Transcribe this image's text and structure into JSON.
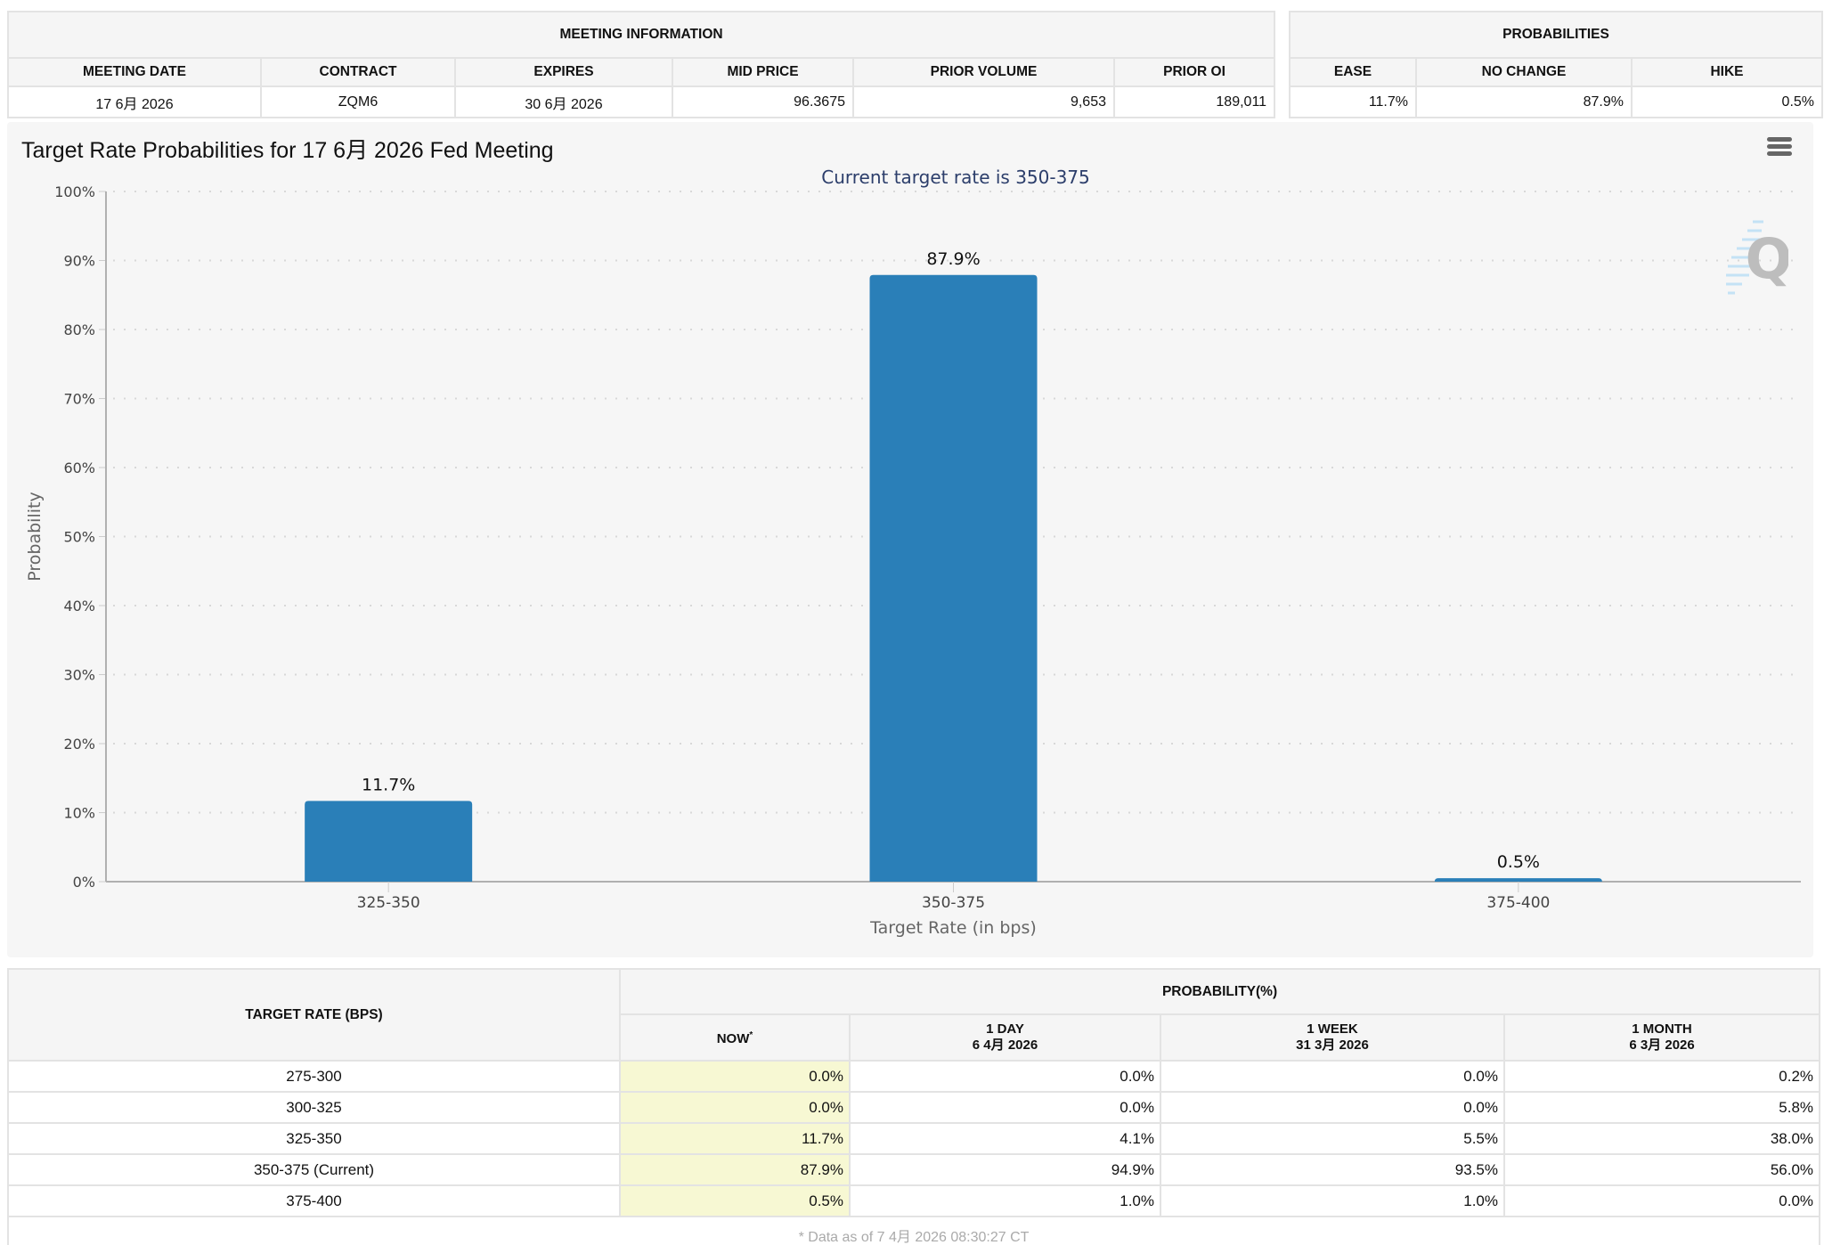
{
  "meeting_info": {
    "title": "MEETING INFORMATION",
    "columns": [
      "MEETING DATE",
      "CONTRACT",
      "EXPIRES",
      "MID PRICE",
      "PRIOR VOLUME",
      "PRIOR OI"
    ],
    "values": [
      "17 6月 2026",
      "ZQM6",
      "30 6月 2026",
      "96.3675",
      "9,653",
      "189,011"
    ]
  },
  "probabilities": {
    "title": "PROBABILITIES",
    "columns": [
      "EASE",
      "NO CHANGE",
      "HIKE"
    ],
    "values": [
      "11.7%",
      "87.9%",
      "0.5%"
    ]
  },
  "chart_panel": {
    "menu_icon": "hamburger-menu-icon",
    "watermark_icon": "quikstrike-q-logo-icon"
  },
  "chart_data": {
    "type": "bar",
    "title": "Target Rate Probabilities for 17 6月 2026 Fed Meeting",
    "subtitle": "Current target rate is 350-375",
    "categories": [
      "325-350",
      "350-375",
      "375-400"
    ],
    "values": [
      11.7,
      87.9,
      0.5
    ],
    "data_labels": [
      "11.7%",
      "87.9%",
      "0.5%"
    ],
    "xlabel": "Target Rate (in bps)",
    "ylabel": "Probability",
    "ylim": [
      0,
      100
    ],
    "yticks": [
      0,
      10,
      20,
      30,
      40,
      50,
      60,
      70,
      80,
      90,
      100
    ],
    "ytick_labels": [
      "0%",
      "10%",
      "20%",
      "30%",
      "40%",
      "50%",
      "60%",
      "70%",
      "80%",
      "90%",
      "100%"
    ],
    "grid": true,
    "bar_color": "#2a7fb8",
    "legend": "none"
  },
  "target_table": {
    "rate_header": "TARGET RATE (BPS)",
    "prob_header": "PROBABILITY(%)",
    "columns": [
      {
        "label": "NOW",
        "sup": "*",
        "date": ""
      },
      {
        "label": "1 DAY",
        "date": "6 4月 2026"
      },
      {
        "label": "1 WEEK",
        "date": "31 3月 2026"
      },
      {
        "label": "1 MONTH",
        "date": "6 3月 2026"
      }
    ],
    "rows": [
      {
        "rate": "275-300",
        "now": "0.0%",
        "day": "0.0%",
        "week": "0.0%",
        "month": "0.2%"
      },
      {
        "rate": "300-325",
        "now": "0.0%",
        "day": "0.0%",
        "week": "0.0%",
        "month": "5.8%"
      },
      {
        "rate": "325-350",
        "now": "11.7%",
        "day": "4.1%",
        "week": "5.5%",
        "month": "38.0%"
      },
      {
        "rate": "350-375 (Current)",
        "now": "87.9%",
        "day": "94.9%",
        "week": "93.5%",
        "month": "56.0%"
      },
      {
        "rate": "375-400",
        "now": "0.5%",
        "day": "1.0%",
        "week": "1.0%",
        "month": "0.0%"
      }
    ],
    "footer": "* Data as of 7 4月 2026 08:30:27 CT",
    "now_highlight_color": "#f7f8d3"
  }
}
